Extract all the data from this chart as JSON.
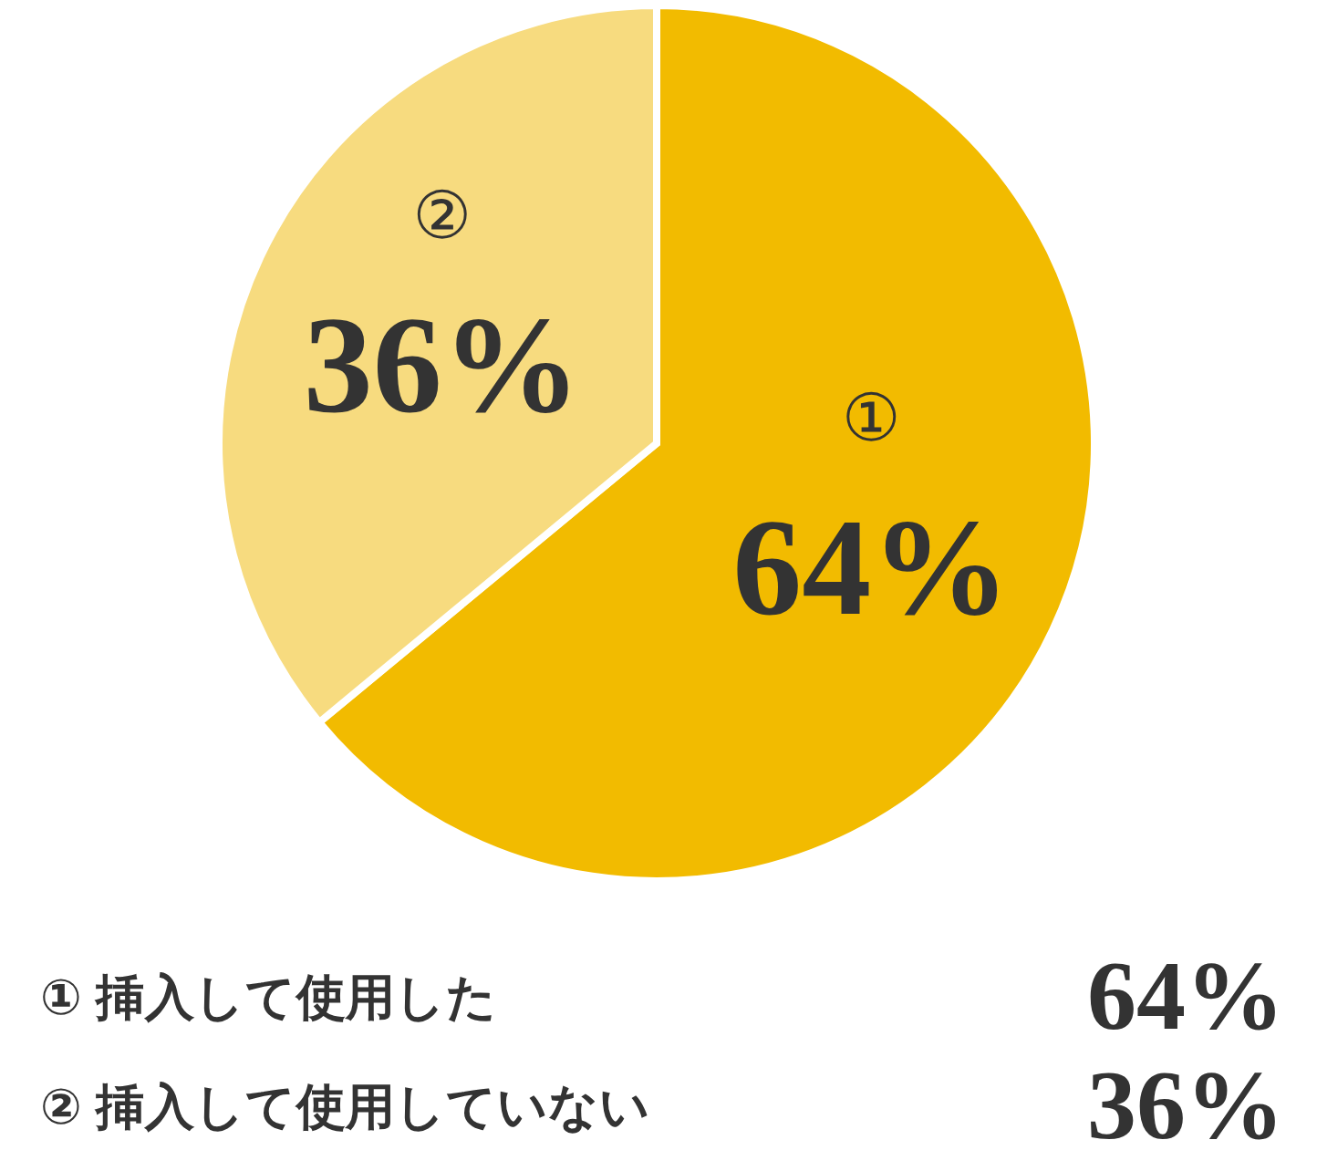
{
  "chart_data": {
    "type": "pie",
    "categories": [
      "挿入して使用した",
      "挿入して使用していない"
    ],
    "values": [
      64,
      36
    ],
    "colors": [
      "#f2bb00",
      "#f7db7f"
    ],
    "value_labels": [
      "64%",
      "36%"
    ],
    "annotations": [
      "①",
      "②"
    ]
  }
}
